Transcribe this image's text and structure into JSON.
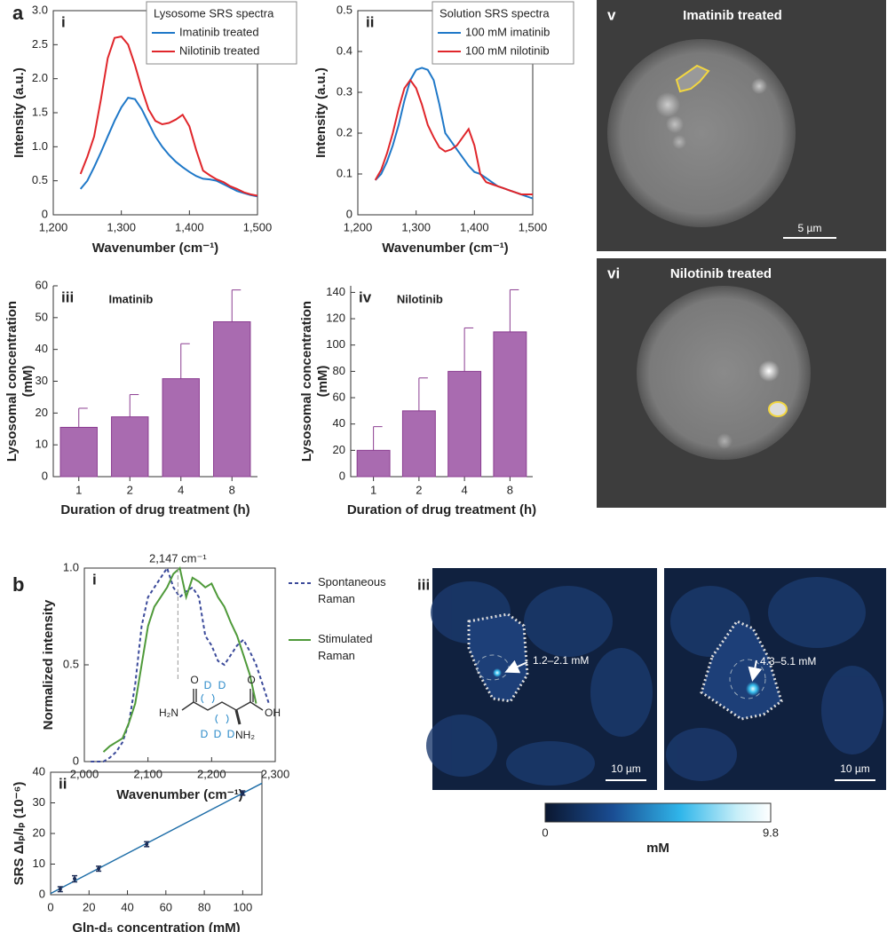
{
  "figure_labels": [
    "a",
    "b"
  ],
  "chart_data": [
    {
      "type": "line",
      "panel": "i",
      "legend_title": "Lysosome SRS spectra",
      "legend": "top-right",
      "xlabel": "Wavenumber (cm⁻¹)",
      "ylabel": "Intensity (a.u.)",
      "xlim": [
        1200,
        1500
      ],
      "xticks": [
        {
          "value": 1200,
          "label": "1,200"
        },
        {
          "value": 1300,
          "label": "1,300"
        },
        {
          "value": 1400,
          "label": "1,400"
        },
        {
          "value": 1500,
          "label": "1,500"
        }
      ],
      "ylim": [
        0,
        3.0
      ],
      "yticks": [
        0,
        0.5,
        {
          "value": 1,
          "label": "1.0"
        },
        1.5,
        {
          "value": 2,
          "label": "2.0"
        },
        2.5,
        {
          "value": 3,
          "label": "3.0"
        }
      ],
      "x": [
        1240,
        1250,
        1260,
        1270,
        1280,
        1290,
        1300,
        1310,
        1320,
        1330,
        1340,
        1350,
        1360,
        1370,
        1380,
        1390,
        1400,
        1410,
        1420,
        1430,
        1440,
        1450,
        1460,
        1470,
        1480,
        1490,
        1500
      ],
      "series": [
        {
          "name": "Imatinib treated",
          "color": "#1f78c8",
          "values": [
            0.38,
            0.5,
            0.7,
            0.92,
            1.15,
            1.38,
            1.58,
            1.72,
            1.7,
            1.55,
            1.35,
            1.15,
            1.0,
            0.88,
            0.78,
            0.7,
            0.63,
            0.57,
            0.53,
            0.52,
            0.5,
            0.45,
            0.4,
            0.35,
            0.32,
            0.29,
            0.27
          ]
        },
        {
          "name": "Nilotinib treated",
          "color": "#e0262b",
          "values": [
            0.6,
            0.85,
            1.15,
            1.7,
            2.3,
            2.6,
            2.62,
            2.5,
            2.2,
            1.85,
            1.55,
            1.38,
            1.33,
            1.35,
            1.4,
            1.47,
            1.3,
            0.95,
            0.65,
            0.58,
            0.52,
            0.48,
            0.42,
            0.38,
            0.33,
            0.3,
            0.28
          ]
        }
      ]
    },
    {
      "type": "line",
      "panel": "ii",
      "legend_title": "Solution SRS spectra",
      "legend": "top-right",
      "xlabel": "Wavenumber (cm⁻¹)",
      "ylabel": "Intensity (a.u.)",
      "xlim": [
        1200,
        1500
      ],
      "xticks": [
        {
          "value": 1200,
          "label": "1,200"
        },
        {
          "value": 1300,
          "label": "1,300"
        },
        {
          "value": 1400,
          "label": "1,400"
        },
        {
          "value": 1500,
          "label": "1,500"
        }
      ],
      "ylim": [
        0,
        0.5
      ],
      "yticks": [
        0,
        0.1,
        0.2,
        0.3,
        0.4,
        0.5
      ],
      "x": [
        1230,
        1240,
        1250,
        1260,
        1270,
        1280,
        1290,
        1300,
        1310,
        1320,
        1330,
        1340,
        1350,
        1360,
        1370,
        1380,
        1390,
        1400,
        1410,
        1420,
        1430,
        1440,
        1450,
        1460,
        1470,
        1480,
        1490,
        1500
      ],
      "series": [
        {
          "name": "100 mM imatinib",
          "color": "#1f78c8",
          "values": [
            0.085,
            0.1,
            0.13,
            0.17,
            0.22,
            0.28,
            0.33,
            0.355,
            0.36,
            0.355,
            0.33,
            0.27,
            0.2,
            0.18,
            0.16,
            0.14,
            0.12,
            0.105,
            0.1,
            0.09,
            0.08,
            0.07,
            0.065,
            0.06,
            0.055,
            0.05,
            0.045,
            0.04
          ]
        },
        {
          "name": "100 mM nilotinib",
          "color": "#e0262b",
          "values": [
            0.085,
            0.11,
            0.15,
            0.2,
            0.26,
            0.31,
            0.33,
            0.31,
            0.27,
            0.22,
            0.19,
            0.165,
            0.155,
            0.16,
            0.17,
            0.19,
            0.21,
            0.17,
            0.1,
            0.08,
            0.075,
            0.07,
            0.065,
            0.06,
            0.055,
            0.05,
            0.05,
            0.05
          ]
        }
      ]
    },
    {
      "type": "bar",
      "panel": "iii",
      "annotation": "Imatinib",
      "color": "#a96bb0",
      "xlabel": "Duration of drug treatment (h)",
      "ylabel": "Lysosomal concentration (mM)",
      "categories": [
        "1",
        "2",
        "4",
        "8"
      ],
      "values": [
        15.5,
        18.8,
        30.8,
        48.7
      ],
      "errors": [
        6,
        7,
        11,
        10
      ],
      "ylim": [
        0,
        60
      ],
      "yticks": [
        0,
        10,
        20,
        30,
        40,
        50,
        60
      ]
    },
    {
      "type": "bar",
      "panel": "iv",
      "annotation": "Nilotinib",
      "color": "#a96bb0",
      "xlabel": "Duration of drug treatment (h)",
      "ylabel": "Lysosomal concentration (mM)",
      "categories": [
        "1",
        "2",
        "4",
        "8"
      ],
      "values": [
        20,
        50,
        80,
        110
      ],
      "errors": [
        18,
        25,
        33,
        32
      ],
      "ylim": [
        0,
        145
      ],
      "yticks": [
        0,
        20,
        40,
        60,
        80,
        100,
        120,
        140
      ]
    },
    {
      "type": "line",
      "panel": "i",
      "legend": "right-outside",
      "xlabel": "Wavenumber (cm⁻¹)",
      "ylabel": "Normalized intensity",
      "annotation": {
        "text": "2,147 cm⁻¹",
        "x": 2147
      },
      "structure_labels": [
        "O",
        "O",
        "H₂N",
        "OH",
        "NH₂",
        "D",
        "D",
        "D",
        "D",
        "D"
      ],
      "xlim": [
        2000,
        2300
      ],
      "xticks": [
        {
          "value": 2000,
          "label": "2,000"
        },
        {
          "value": 2100,
          "label": "2,100"
        },
        {
          "value": 2200,
          "label": "2,200"
        },
        {
          "value": 2300,
          "label": "2,300"
        }
      ],
      "ylim": [
        0,
        1
      ],
      "yticks": [
        0,
        0.5,
        {
          "value": 1,
          "label": "1.0"
        }
      ],
      "series": [
        {
          "name": "Spontaneous Raman",
          "color": "#3b4a9a",
          "dashed": true,
          "x": [
            2010,
            2020,
            2030,
            2040,
            2050,
            2060,
            2070,
            2080,
            2090,
            2100,
            2110,
            2120,
            2130,
            2140,
            2150,
            2160,
            2170,
            2180,
            2190,
            2200,
            2210,
            2220,
            2230,
            2240,
            2250,
            2260,
            2270,
            2280,
            2290
          ],
          "values": [
            0,
            0,
            0,
            0.02,
            0.05,
            0.1,
            0.2,
            0.4,
            0.7,
            0.85,
            0.9,
            0.95,
            1.0,
            0.9,
            0.85,
            0.88,
            0.9,
            0.85,
            0.65,
            0.6,
            0.52,
            0.5,
            0.55,
            0.6,
            0.63,
            0.57,
            0.5,
            0.4,
            0.3
          ]
        },
        {
          "name": "Stimulated Raman",
          "color": "#4f9a3a",
          "x": [
            2030,
            2040,
            2050,
            2060,
            2070,
            2080,
            2090,
            2100,
            2110,
            2120,
            2130,
            2140,
            2150,
            2160,
            2170,
            2180,
            2190,
            2200,
            2210,
            2220,
            2230,
            2240,
            2250,
            2260,
            2270
          ],
          "values": [
            0.05,
            0.08,
            0.1,
            0.12,
            0.2,
            0.3,
            0.5,
            0.7,
            0.8,
            0.85,
            0.9,
            0.97,
            1.0,
            0.85,
            0.95,
            0.93,
            0.9,
            0.92,
            0.85,
            0.8,
            0.72,
            0.65,
            0.55,
            0.45,
            0.3
          ]
        }
      ]
    },
    {
      "type": "scatter",
      "panel": "ii",
      "color": "#1f6ea8",
      "xlabel": "Gln-d₅ concentration (mM)",
      "ylabel": "SRS ΔIₚ/Iₚ (10⁻⁶)",
      "x": [
        5,
        12.5,
        25,
        50,
        100
      ],
      "values": [
        1.8,
        5.2,
        8.5,
        16.5,
        33.2
      ],
      "errors": [
        0.8,
        1,
        0.8,
        0.8,
        0.7
      ],
      "fit_line": {
        "x": [
          0,
          110
        ],
        "values": [
          0.4,
          36.4
        ]
      },
      "xlim": [
        0,
        110
      ],
      "xticks": [
        0,
        20,
        40,
        60,
        80,
        100
      ],
      "ylim": [
        0,
        40
      ],
      "yticks": [
        0,
        10,
        20,
        30,
        40
      ]
    }
  ],
  "images": {
    "v": {
      "panel": "v",
      "title": "Imatinib treated",
      "scale_bar": "5 µm"
    },
    "vi": {
      "panel": "vi",
      "title": "Nilotinib treated"
    },
    "iii": {
      "panel": "iii",
      "left_label": "1.2–2.1 mM",
      "right_label": "4.3–5.1 mM",
      "scale_bar": "10 µm"
    },
    "colorbar": {
      "min": 0,
      "max": 9.8,
      "unit": "mM"
    }
  }
}
